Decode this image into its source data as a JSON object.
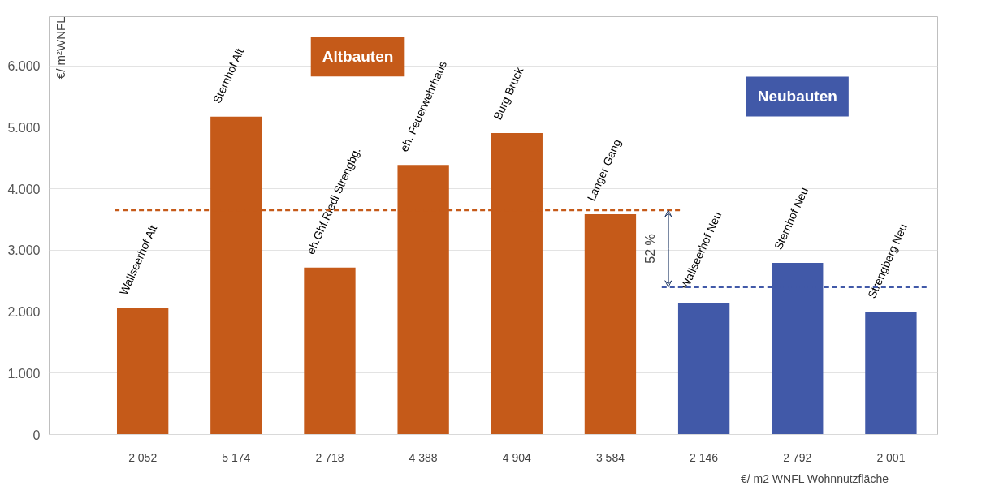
{
  "chart_data": {
    "type": "bar",
    "categories": [
      "Wallseerhof Alt",
      "Sternhof Alt",
      "eh.Ghf.Riedl Strengbg.",
      "eh. Feuerwehrhaus",
      "Burg Bruck",
      "Langer Gang",
      "Wallseerhof Neu",
      "Sternhof Neu",
      "Strengberg Neu"
    ],
    "values": [
      2052,
      5174,
      2718,
      4388,
      4904,
      3584,
      2146,
      2792,
      2001
    ],
    "value_labels": [
      "2 052",
      "5 174",
      "2 718",
      "4 388",
      "4 904",
      "3 584",
      "2 146",
      "2 792",
      "2 001"
    ],
    "colors": [
      "#c55a19",
      "#c55a19",
      "#c55a19",
      "#c55a19",
      "#c55a19",
      "#c55a19",
      "#4159a8",
      "#4159a8",
      "#4159a8"
    ],
    "ylabel": "€/ m²WNFL",
    "xlabel": "€/ m2 WNFL Wohnnutzfläche",
    "ylim": [
      0,
      6800
    ],
    "yticks": [
      {
        "value": 0,
        "label": "0"
      },
      {
        "value": 1000,
        "label": "1.000"
      },
      {
        "value": 2000,
        "label": "2.000"
      },
      {
        "value": 3000,
        "label": "3.000"
      },
      {
        "value": 4000,
        "label": "4.000"
      },
      {
        "value": 5000,
        "label": "5.000"
      },
      {
        "value": 6000,
        "label": "6.000"
      }
    ],
    "ref_lines": [
      {
        "axis": "y",
        "value": 3650,
        "color": "#c55a19",
        "line_style": "dashed"
      },
      {
        "axis": "y",
        "value": 2400,
        "color": "#4159a8",
        "line_style": "dashed"
      }
    ],
    "annotations": [
      "Altbauten",
      "Neubauten",
      {
        "text": "52 %",
        "y": 3650
      }
    ],
    "grid": "y"
  }
}
